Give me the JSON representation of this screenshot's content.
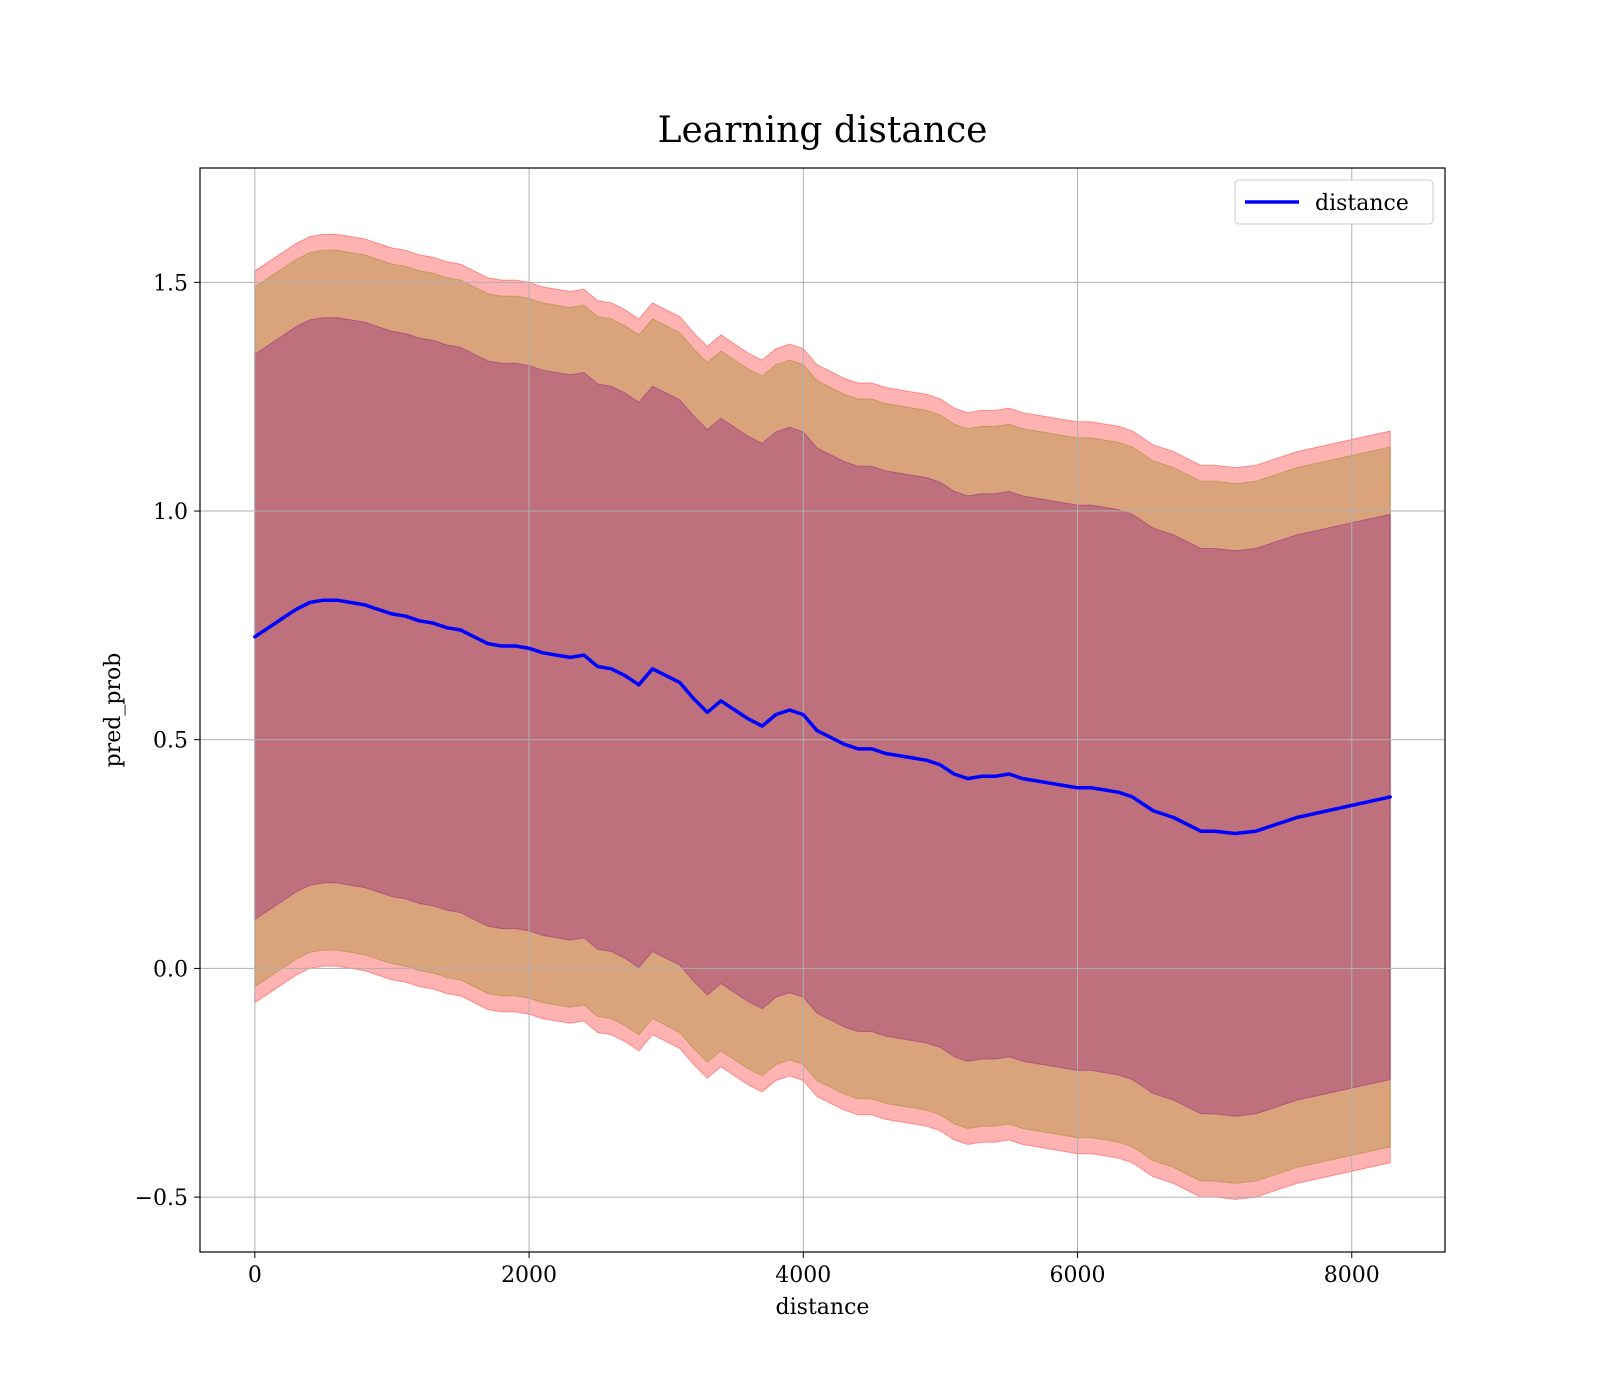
{
  "chart_data": {
    "type": "line",
    "title": "Learning distance",
    "xlabel": "distance",
    "ylabel": "pred_prob",
    "xlim": [
      -400,
      8680
    ],
    "ylim": [
      -0.62,
      1.75
    ],
    "x_ticks": [
      0,
      2000,
      4000,
      6000,
      8000
    ],
    "y_ticks": [
      -0.5,
      0.0,
      0.5,
      1.0,
      1.5
    ],
    "x_tick_labels": [
      "0",
      "2000",
      "4000",
      "6000",
      "8000"
    ],
    "y_tick_labels": [
      "−0.5",
      "0.0",
      "0.5",
      "1.0",
      "1.5"
    ],
    "grid": true,
    "legend_position": "upper right",
    "legend": [
      "distance"
    ],
    "series": [
      {
        "name": "distance",
        "color": "#0000ff",
        "x": [
          0,
          100,
          200,
          300,
          400,
          500,
          600,
          700,
          800,
          900,
          1000,
          1100,
          1200,
          1300,
          1400,
          1500,
          1600,
          1700,
          1800,
          1900,
          2000,
          2100,
          2200,
          2300,
          2400,
          2500,
          2600,
          2700,
          2800,
          2900,
          3000,
          3100,
          3200,
          3300,
          3400,
          3500,
          3600,
          3700,
          3800,
          3900,
          4000,
          4100,
          4200,
          4300,
          4400,
          4500,
          4600,
          4700,
          4800,
          4900,
          5000,
          5100,
          5200,
          5300,
          5400,
          5500,
          5600,
          5700,
          5800,
          5900,
          6000,
          6100,
          6200,
          6300,
          6400,
          6550,
          6700,
          6900,
          7000,
          7150,
          7300,
          7600,
          8280
        ],
        "y": [
          0.725,
          0.745,
          0.765,
          0.785,
          0.8,
          0.805,
          0.805,
          0.8,
          0.795,
          0.785,
          0.775,
          0.77,
          0.76,
          0.755,
          0.745,
          0.74,
          0.725,
          0.71,
          0.705,
          0.705,
          0.7,
          0.69,
          0.685,
          0.68,
          0.685,
          0.66,
          0.655,
          0.64,
          0.62,
          0.655,
          0.64,
          0.625,
          0.59,
          0.56,
          0.585,
          0.565,
          0.545,
          0.53,
          0.555,
          0.565,
          0.555,
          0.52,
          0.505,
          0.49,
          0.48,
          0.48,
          0.47,
          0.465,
          0.46,
          0.455,
          0.445,
          0.425,
          0.415,
          0.42,
          0.42,
          0.425,
          0.415,
          0.41,
          0.405,
          0.4,
          0.395,
          0.395,
          0.39,
          0.385,
          0.375,
          0.345,
          0.33,
          0.3,
          0.3,
          0.295,
          0.3,
          0.33,
          0.375
        ]
      }
    ],
    "bands": [
      {
        "description": "outer band",
        "color": "#ff0000",
        "alpha": 0.3,
        "upper_offset": 0.8,
        "lower_offset": 0.8
      },
      {
        "description": "middle band",
        "color": "#808000",
        "alpha": 0.3,
        "upper_offset": 0.765,
        "lower_offset": 0.765
      },
      {
        "description": "inner band",
        "color": "#800080",
        "alpha": 0.3,
        "upper_offset": 0.618,
        "lower_offset": 0.618
      }
    ]
  }
}
